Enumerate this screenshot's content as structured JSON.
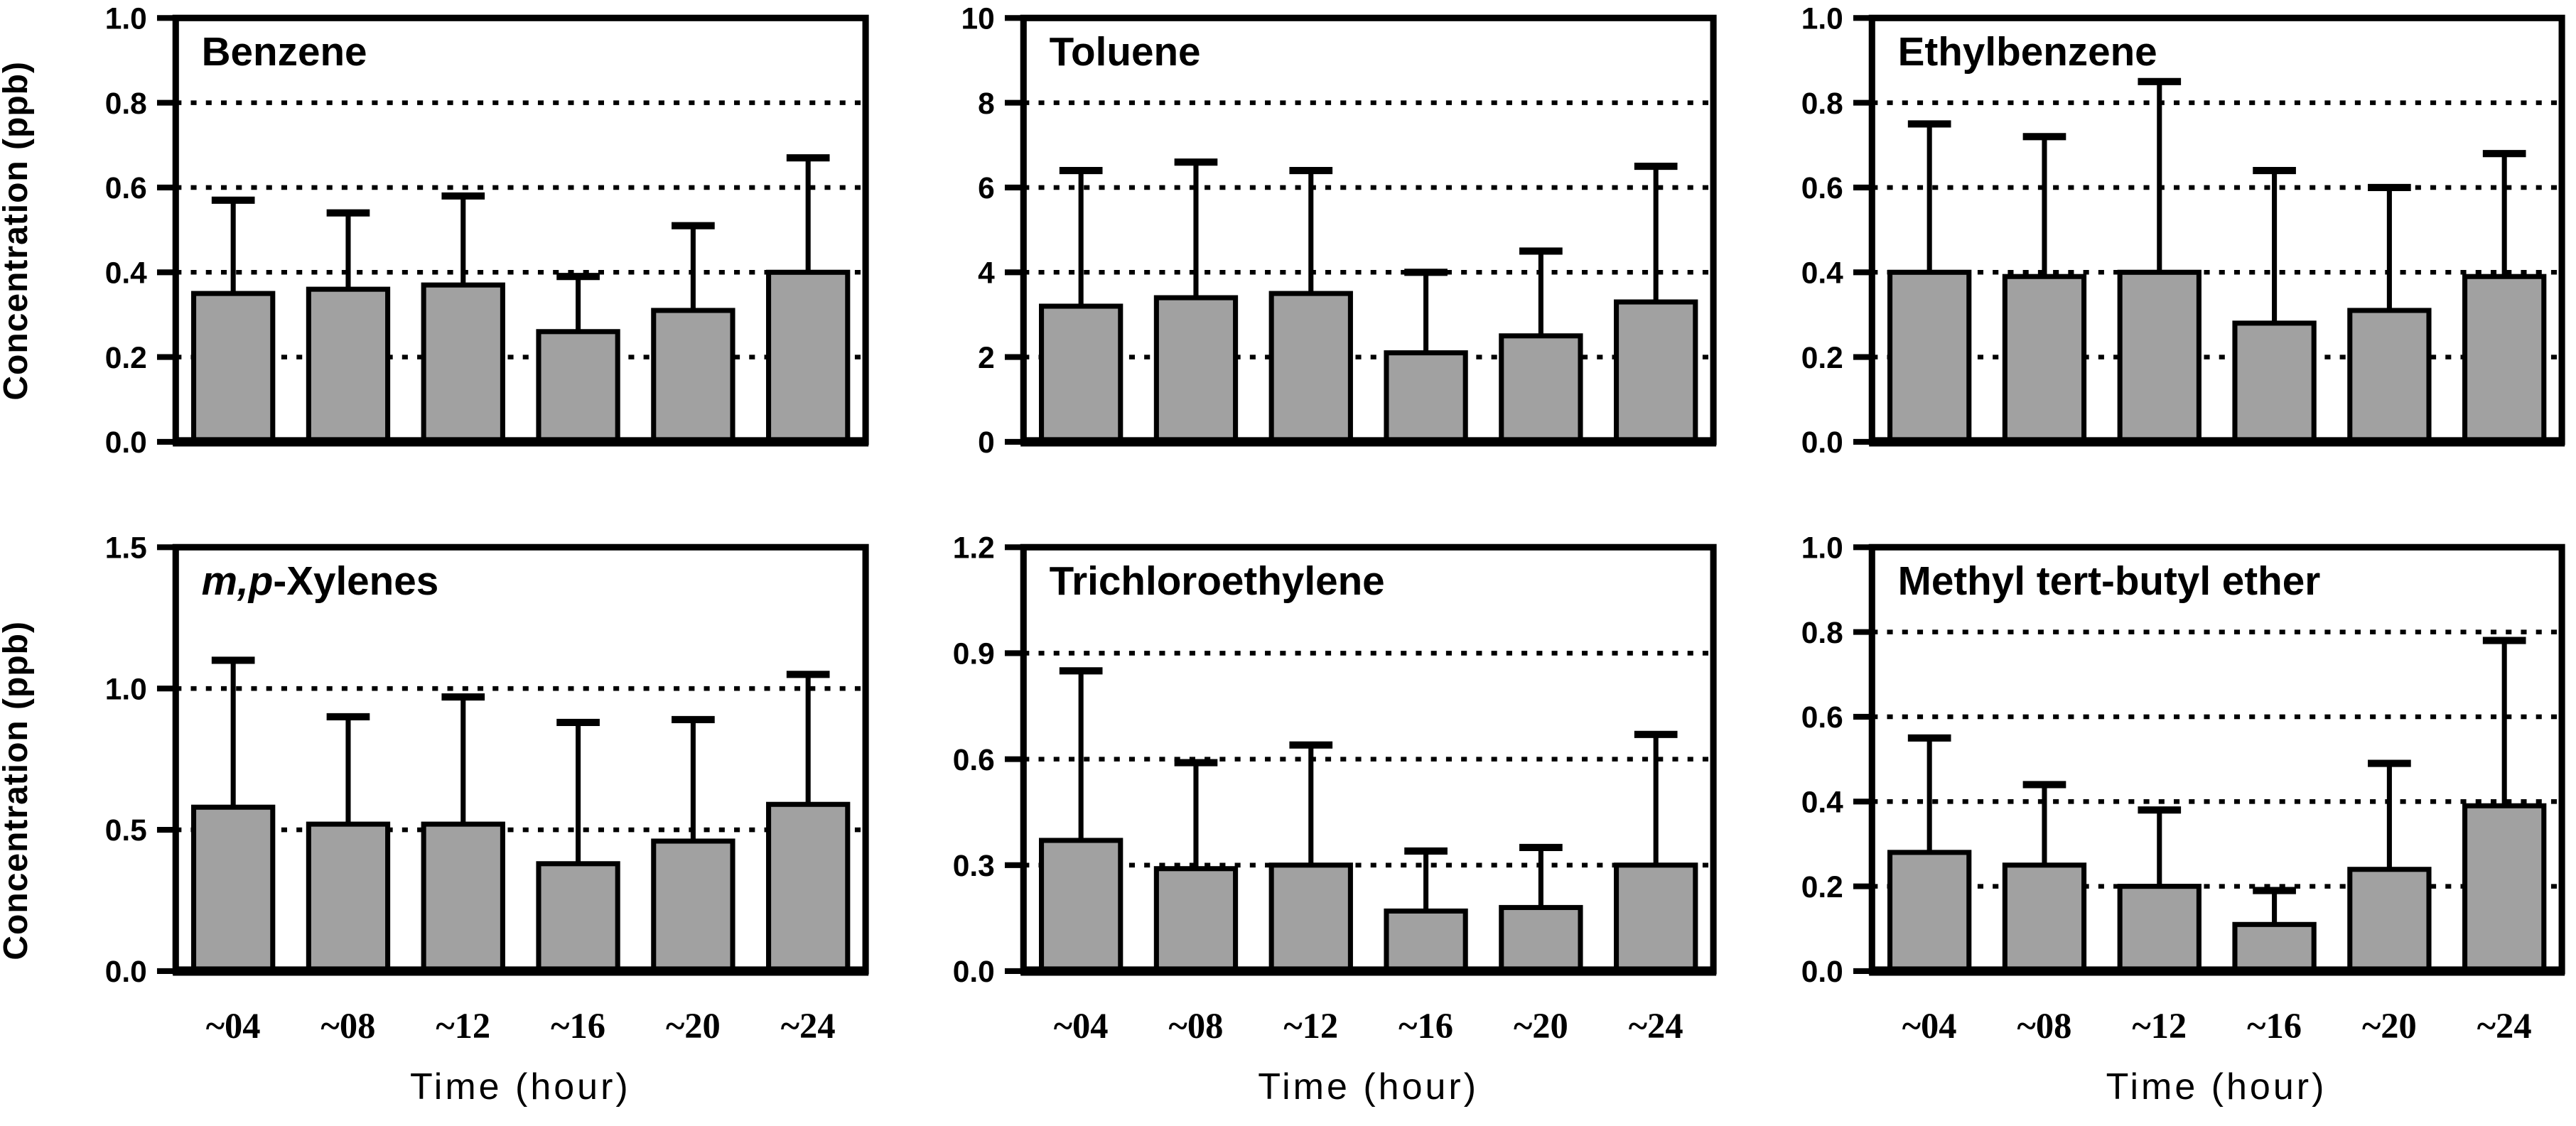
{
  "ylabel": "Concentration (ppb)",
  "xlabel": "Time (hour)",
  "colors": {
    "background": "#FFFFFF",
    "bar_fill": "#A1A1A1",
    "bar_border": "#000000",
    "text": "#000000",
    "gridline": "#000000"
  },
  "chart_data": [
    {
      "type": "bar",
      "id": "benzene",
      "title": "Benzene",
      "title_runs": [
        {
          "text": "Benzene",
          "italic": false
        }
      ],
      "categories": [
        "~04",
        "~08",
        "~12",
        "~16",
        "~20",
        "~24"
      ],
      "values": [
        0.35,
        0.36,
        0.37,
        0.26,
        0.31,
        0.4
      ],
      "errors_upper": [
        0.57,
        0.54,
        0.58,
        0.39,
        0.51,
        0.67
      ],
      "ylim": [
        0,
        1.0
      ],
      "yticks": [
        0,
        0.2,
        0.4,
        0.6,
        0.8,
        1.0
      ],
      "ytick_labels": [
        "0.0",
        "0.2",
        "0.4",
        "0.6",
        "0.8",
        "1.0"
      ],
      "xlabel": "Time (hour)",
      "ylabel": "Concentration (ppb)",
      "grid": "dotted-horizontal"
    },
    {
      "type": "bar",
      "id": "toluene",
      "title": "Toluene",
      "title_runs": [
        {
          "text": "Toluene",
          "italic": false
        }
      ],
      "categories": [
        "~04",
        "~08",
        "~12",
        "~16",
        "~20",
        "~24"
      ],
      "values": [
        3.2,
        3.4,
        3.5,
        2.1,
        2.5,
        3.3
      ],
      "errors_upper": [
        6.4,
        6.6,
        6.4,
        4.0,
        4.5,
        6.5
      ],
      "ylim": [
        0,
        10
      ],
      "yticks": [
        0,
        2,
        4,
        6,
        8,
        10
      ],
      "ytick_labels": [
        "0",
        "2",
        "4",
        "6",
        "8",
        "10"
      ],
      "xlabel": "Time (hour)",
      "grid": "dotted-horizontal"
    },
    {
      "type": "bar",
      "id": "ethylbenzene",
      "title": "Ethylbenzene",
      "title_runs": [
        {
          "text": "Ethylbenzene",
          "italic": false
        }
      ],
      "categories": [
        "~04",
        "~08",
        "~12",
        "~16",
        "~20",
        "~24"
      ],
      "values": [
        0.4,
        0.39,
        0.4,
        0.28,
        0.31,
        0.39
      ],
      "errors_upper": [
        0.75,
        0.72,
        0.85,
        0.64,
        0.6,
        0.68
      ],
      "ylim": [
        0,
        1.0
      ],
      "yticks": [
        0,
        0.2,
        0.4,
        0.6,
        0.8,
        1.0
      ],
      "ytick_labels": [
        "0.0",
        "0.2",
        "0.4",
        "0.6",
        "0.8",
        "1.0"
      ],
      "xlabel": "Time (hour)",
      "grid": "dotted-horizontal"
    },
    {
      "type": "bar",
      "id": "mp_xylenes",
      "title": "m,p-Xylenes",
      "title_runs": [
        {
          "text": "m,p",
          "italic": true
        },
        {
          "text": "-Xylenes",
          "italic": false
        }
      ],
      "categories": [
        "~04",
        "~08",
        "~12",
        "~16",
        "~20",
        "~24"
      ],
      "values": [
        0.58,
        0.52,
        0.52,
        0.38,
        0.46,
        0.59
      ],
      "errors_upper": [
        1.1,
        0.9,
        0.97,
        0.88,
        0.89,
        1.05
      ],
      "ylim": [
        0,
        1.5
      ],
      "yticks": [
        0,
        0.5,
        1.0,
        1.5
      ],
      "ytick_labels": [
        "0.0",
        "0.5",
        "1.0",
        "1.5"
      ],
      "xlabel": "Time (hour)",
      "ylabel": "Concentration (ppb)",
      "grid": "dotted-horizontal"
    },
    {
      "type": "bar",
      "id": "trichloroethylene",
      "title": "Trichloroethylene",
      "title_runs": [
        {
          "text": "Trichloroethylene",
          "italic": false
        }
      ],
      "categories": [
        "~04",
        "~08",
        "~12",
        "~16",
        "~20",
        "~24"
      ],
      "values": [
        0.37,
        0.29,
        0.3,
        0.17,
        0.18,
        0.3
      ],
      "errors_upper": [
        0.85,
        0.59,
        0.64,
        0.34,
        0.35,
        0.67
      ],
      "ylim": [
        0,
        1.2
      ],
      "yticks": [
        0,
        0.3,
        0.6,
        0.9,
        1.2
      ],
      "ytick_labels": [
        "0.0",
        "0.3",
        "0.6",
        "0.9",
        "1.2"
      ],
      "xlabel": "Time (hour)",
      "grid": "dotted-horizontal"
    },
    {
      "type": "bar",
      "id": "mtbe",
      "title": "Methyl tert-butyl ether",
      "title_runs": [
        {
          "text": "Methyl tert-butyl ether",
          "italic": false
        }
      ],
      "categories": [
        "~04",
        "~08",
        "~12",
        "~16",
        "~20",
        "~24"
      ],
      "values": [
        0.28,
        0.25,
        0.2,
        0.11,
        0.24,
        0.39
      ],
      "errors_upper": [
        0.55,
        0.44,
        0.38,
        0.19,
        0.49,
        0.78
      ],
      "ylim": [
        0,
        1.0
      ],
      "yticks": [
        0,
        0.2,
        0.4,
        0.6,
        0.8,
        1.0
      ],
      "ytick_labels": [
        "0.0",
        "0.2",
        "0.4",
        "0.6",
        "0.8",
        "1.0"
      ],
      "xlabel": "Time (hour)",
      "grid": "dotted-horizontal"
    }
  ]
}
